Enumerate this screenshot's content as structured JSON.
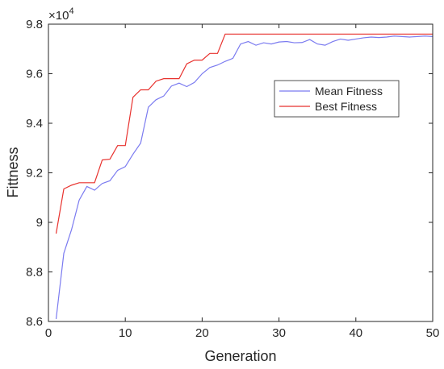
{
  "chart_data": {
    "type": "line",
    "xlabel": "Generation",
    "ylabel": "Fittness",
    "exponent_label": "×10",
    "exponent_power": "4",
    "xlim": [
      0,
      50
    ],
    "ylim": [
      8.6,
      9.8
    ],
    "x_ticks": [
      0,
      10,
      20,
      30,
      40,
      50
    ],
    "y_ticks": [
      8.6,
      8.8,
      9.0,
      9.2,
      9.4,
      9.6,
      9.8
    ],
    "x_tick_labels": [
      "0",
      "10",
      "20",
      "30",
      "40",
      "50"
    ],
    "y_tick_labels": [
      "8.6",
      "8.8",
      "9",
      "9.2",
      "9.4",
      "9.6",
      "9.8"
    ],
    "grid": false,
    "legend_position": "right",
    "x": [
      1,
      2,
      3,
      4,
      5,
      6,
      7,
      8,
      9,
      10,
      11,
      12,
      13,
      14,
      15,
      16,
      17,
      18,
      19,
      20,
      21,
      22,
      23,
      24,
      25,
      26,
      27,
      28,
      29,
      30,
      31,
      32,
      33,
      34,
      35,
      36,
      37,
      38,
      39,
      40,
      41,
      42,
      43,
      44,
      45,
      46,
      47,
      48,
      49,
      50
    ],
    "series": [
      {
        "name": "Mean Fitness",
        "color": "#7b7bf0",
        "values": [
          8.61,
          8.875,
          8.97,
          9.09,
          9.145,
          9.13,
          9.157,
          9.168,
          9.21,
          9.225,
          9.275,
          9.32,
          9.465,
          9.495,
          9.51,
          9.55,
          9.562,
          9.548,
          9.565,
          9.6,
          9.625,
          9.635,
          9.65,
          9.662,
          9.72,
          9.73,
          9.715,
          9.725,
          9.72,
          9.728,
          9.73,
          9.725,
          9.726,
          9.738,
          9.72,
          9.715,
          9.73,
          9.74,
          9.735,
          9.74,
          9.745,
          9.748,
          9.746,
          9.748,
          9.752,
          9.75,
          9.748,
          9.75,
          9.752,
          9.75
        ]
      },
      {
        "name": "Best Fitness",
        "color": "#e8322e",
        "values": [
          8.955,
          9.135,
          9.15,
          9.16,
          9.16,
          9.16,
          9.252,
          9.255,
          9.31,
          9.31,
          9.505,
          9.535,
          9.535,
          9.57,
          9.58,
          9.58,
          9.58,
          9.64,
          9.655,
          9.655,
          9.682,
          9.682,
          9.76,
          9.76,
          9.76,
          9.76,
          9.76,
          9.76,
          9.76,
          9.76,
          9.76,
          9.76,
          9.76,
          9.76,
          9.76,
          9.76,
          9.76,
          9.76,
          9.76,
          9.76,
          9.76,
          9.76,
          9.76,
          9.76,
          9.76,
          9.76,
          9.76,
          9.76,
          9.76,
          9.76
        ]
      }
    ]
  }
}
